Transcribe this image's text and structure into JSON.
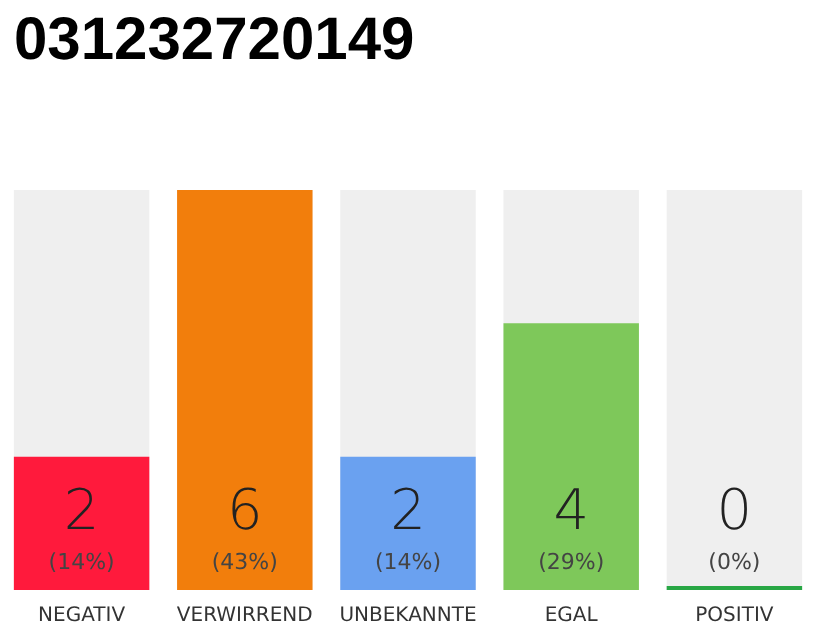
{
  "chart_data": {
    "type": "bar",
    "title": "031232720149",
    "categories": [
      "NEGATIV",
      "VERWIRREND",
      "UNBEKANNTE",
      "EGAL",
      "POSITIV"
    ],
    "values": [
      2,
      6,
      2,
      4,
      0
    ],
    "colors": [
      "#ff1a3c",
      "#f27e0c",
      "#6aa1f0",
      "#7ec85a",
      "#28a745"
    ],
    "value_labels": [
      "2\n(14%)",
      "6\n(43%)",
      "2\n(14%)",
      "4\n(29%)",
      "0\n(0%)"
    ],
    "grid": false
  }
}
